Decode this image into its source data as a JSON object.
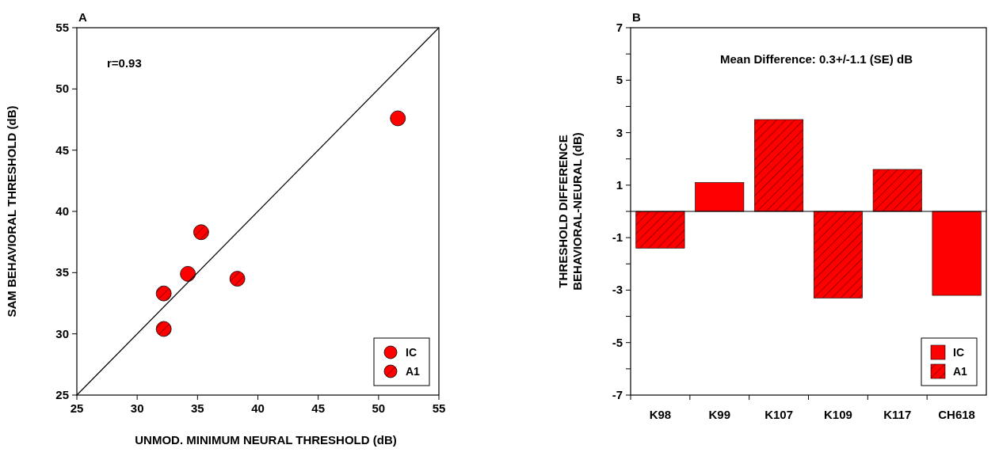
{
  "chart_data": [
    {
      "type": "scatter",
      "title": "A",
      "xlabel": "UNMOD. MINIMUM NEURAL THRESHOLD (dB)",
      "ylabel": "SAM BEHAVIORAL THRESHOLD (dB)",
      "annotations": [
        "r=0.93"
      ],
      "xlim": [
        25,
        55
      ],
      "xticks": [
        25,
        30,
        35,
        40,
        45,
        50,
        55
      ],
      "ylim": [
        25,
        55
      ],
      "yticks": [
        25,
        30,
        35,
        40,
        45,
        50,
        55
      ],
      "grid": false,
      "legend": "bottom right",
      "marker": "circle",
      "series": [
        {
          "name": "IC",
          "color": "#ff0000",
          "x": [
            34.2,
            51.6
          ],
          "values": [
            34.9,
            47.6
          ]
        },
        {
          "name": "A1",
          "color": "#ff0000",
          "x": [
            32.2,
            32.2,
            35.3,
            38.3
          ],
          "values": [
            33.3,
            30.4,
            38.3,
            34.5
          ]
        },
        {
          "type": "line",
          "color": "#000000",
          "marker": "none",
          "x": [
            25,
            55
          ],
          "values": [
            25,
            55
          ]
        }
      ]
    },
    {
      "type": "bar",
      "title": "B",
      "ylabel": "THRESHOLD DIFFERENCE\nBEHAVIORAL-NEURAL (dB)",
      "annotations": [
        "Mean Difference: 0.3+/-1.1 (SE) dB"
      ],
      "categories": [
        "K98",
        "K99",
        "K107",
        "K109",
        "K117",
        "CH618"
      ],
      "stacked": true,
      "ylim": [
        -7,
        7
      ],
      "yticks": [
        {
          "value": -7,
          "label": "-7"
        },
        {
          "value": -6,
          "label": null
        },
        {
          "value": -5,
          "label": "-5"
        },
        {
          "value": -4,
          "label": null
        },
        {
          "value": -3,
          "label": "-3"
        },
        {
          "value": -2,
          "label": null
        },
        {
          "value": -1,
          "label": "-1"
        },
        {
          "value": 0,
          "label": null
        },
        {
          "value": 1,
          "label": "1"
        },
        {
          "value": 2,
          "label": null
        },
        {
          "value": 3,
          "label": "3"
        },
        {
          "value": 4,
          "label": null
        },
        {
          "value": 5,
          "label": "5"
        },
        {
          "value": 6,
          "label": null
        },
        {
          "value": 7,
          "label": "7"
        }
      ],
      "grid": false,
      "legend": "bottom right",
      "ref_lines": [
        {
          "axis": "y",
          "value": 0,
          "color": "#000000"
        }
      ],
      "series": [
        {
          "name": "IC",
          "color": "#ff0000",
          "values": [
            null,
            1.1,
            null,
            null,
            null,
            -3.2
          ]
        },
        {
          "name": "A1",
          "color": "#ff0000",
          "values": [
            -1.4,
            null,
            3.5,
            -3.3,
            1.6,
            null
          ]
        }
      ]
    }
  ]
}
